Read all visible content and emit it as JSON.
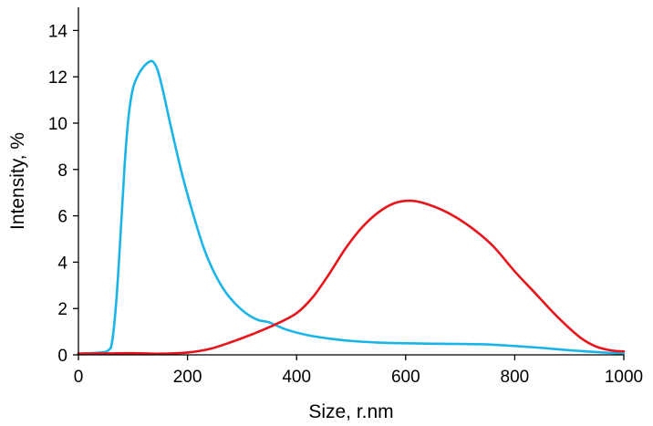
{
  "chart_data": {
    "type": "line",
    "xlabel": "Size, r.nm",
    "ylabel": "Intensity, %",
    "xlim": [
      0,
      1000
    ],
    "ylim": [
      0,
      15
    ],
    "x_ticks": [
      0,
      200,
      400,
      600,
      800,
      1000
    ],
    "y_ticks": [
      0,
      2,
      4,
      6,
      8,
      10,
      12,
      14
    ],
    "grid": false,
    "legend": "none",
    "series": [
      {
        "color": "#1ab4e8",
        "x": [
          0,
          40,
          55,
          62,
          70,
          78,
          85,
          92,
          100,
          110,
          120,
          130,
          137,
          145,
          155,
          170,
          190,
          210,
          230,
          250,
          270,
          290,
          310,
          330,
          350,
          380,
          420,
          460,
          500,
          550,
          600,
          650,
          700,
          750,
          800,
          850,
          900,
          950,
          1000
        ],
        "y": [
          0.05,
          0.1,
          0.2,
          0.6,
          2.5,
          5.5,
          8.3,
          10.3,
          11.5,
          12.1,
          12.45,
          12.65,
          12.65,
          12.3,
          11.4,
          9.8,
          7.8,
          6.1,
          4.6,
          3.5,
          2.7,
          2.15,
          1.75,
          1.5,
          1.4,
          1.1,
          0.85,
          0.7,
          0.6,
          0.53,
          0.5,
          0.48,
          0.47,
          0.45,
          0.38,
          0.3,
          0.2,
          0.12,
          0.05
        ]
      },
      {
        "color": "#e8141b",
        "x": [
          0,
          50,
          100,
          150,
          200,
          240,
          280,
          320,
          360,
          400,
          430,
          460,
          490,
          520,
          550,
          580,
          610,
          640,
          680,
          720,
          760,
          800,
          840,
          880,
          920,
          950,
          980,
          1000
        ],
        "y": [
          0.05,
          0.06,
          0.07,
          0.05,
          0.1,
          0.25,
          0.55,
          0.9,
          1.3,
          1.8,
          2.5,
          3.5,
          4.6,
          5.5,
          6.15,
          6.55,
          6.65,
          6.5,
          6.1,
          5.5,
          4.7,
          3.6,
          2.6,
          1.6,
          0.75,
          0.35,
          0.18,
          0.15
        ]
      }
    ]
  }
}
